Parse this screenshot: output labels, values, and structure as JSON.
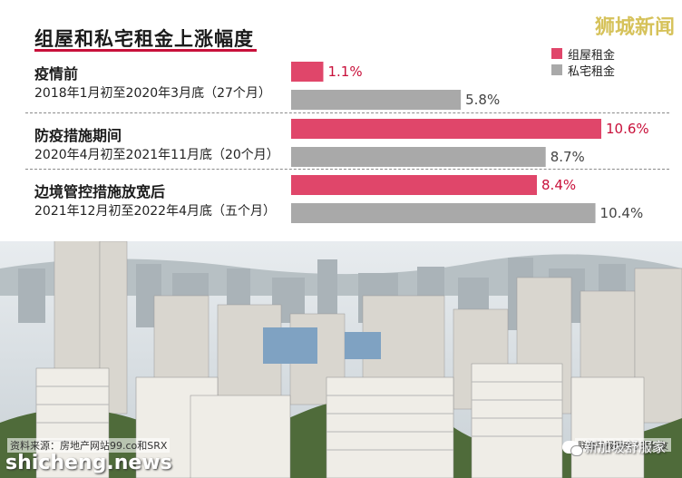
{
  "brand": "狮城新闻",
  "colors": {
    "hdb": "#e0466a",
    "private": "#a9a9a9",
    "accent": "#c8103a"
  },
  "legend": [
    {
      "label": "组屋租金",
      "color": "#e0466a"
    },
    {
      "label": "私宅租金",
      "color": "#a9a9a9"
    }
  ],
  "footer": {
    "source": "资料来源：房地产网站99.co和SRX",
    "credit": "联合早报图表 / 蔡新友",
    "site": "shicheng.news",
    "wechat": "新加坡舒服家"
  },
  "chart_data": {
    "type": "bar",
    "orientation": "horizontal",
    "title": "组屋和私宅租金上涨幅度",
    "unit": "%",
    "categories": [
      {
        "name": "疫情前",
        "range": "2018年1月初至2020年3月底（27个月）"
      },
      {
        "name": "防疫措施期间",
        "range": "2020年4月初至2021年11月底（20个月）"
      },
      {
        "name": "边境管控措施放宽后",
        "range": "2021年12月初至2022年4月底（五个月）"
      }
    ],
    "series": [
      {
        "name": "组屋租金",
        "values": [
          1.1,
          10.6,
          8.4
        ],
        "labels": [
          "1.1%",
          "10.6%",
          "8.4%"
        ]
      },
      {
        "name": "私宅租金",
        "values": [
          5.8,
          8.7,
          10.4
        ],
        "labels": [
          "5.8%",
          "8.7%",
          "10.4%"
        ]
      }
    ],
    "xlim": [
      0,
      10.6
    ],
    "legend_position": "top-right",
    "grid": false
  }
}
